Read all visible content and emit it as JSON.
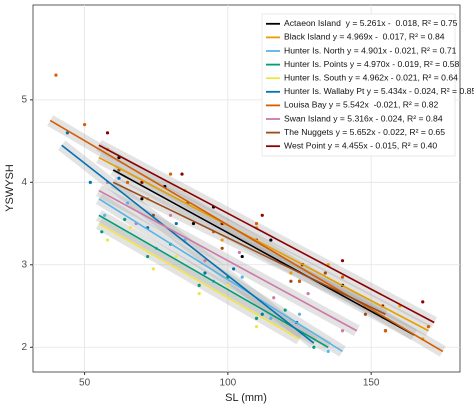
{
  "chart_data": {
    "type": "scatter",
    "x_label": "SL (mm)",
    "y_label": "YSWYSH",
    "xlim": [
      32,
      181
    ],
    "ylim": [
      1.7,
      6.15
    ],
    "xticks": [
      50,
      100,
      150
    ],
    "yticks": [
      2,
      3,
      4,
      5
    ],
    "grid": true,
    "legend": "top-right",
    "series": [
      {
        "name": "Actaeon Island  y = 5.261x -  0.018, R² = 0.75",
        "color": "#000000",
        "x": [
          62,
          70,
          78,
          88,
          95,
          105,
          115,
          125,
          140,
          155
        ],
        "values": [
          4.3,
          3.8,
          3.95,
          3.5,
          3.7,
          3.1,
          3.3,
          2.8,
          2.75,
          2.2
        ],
        "fit_x": [
          60,
          165
        ],
        "fit_y": [
          4.15,
          2.15
        ]
      },
      {
        "name": "Black Island y = 4.969x -  0.017, R² = 0.84",
        "color": "#e69f00",
        "x": [
          58,
          72,
          85,
          98,
          110,
          122,
          135,
          148,
          160,
          168
        ],
        "values": [
          4.4,
          3.8,
          3.9,
          3.3,
          3.45,
          2.9,
          3.0,
          2.5,
          2.5,
          2.1
        ],
        "fit_x": [
          55,
          170
        ],
        "fit_y": [
          4.3,
          2.2
        ]
      },
      {
        "name": "Hunter Is. North y = 4.901x - 0.021, R² = 0.71",
        "color": "#56b4e9",
        "x": [
          57,
          65,
          75,
          85,
          95,
          105,
          115,
          125,
          135
        ],
        "values": [
          3.6,
          3.75,
          3.2,
          3.3,
          2.8,
          2.85,
          2.35,
          2.4,
          1.95
        ],
        "fit_x": [
          55,
          140
        ],
        "fit_y": [
          3.8,
          1.95
        ]
      },
      {
        "name": "Hunter Is. Points y = 4.970x - 0.019, R² = 0.58",
        "color": "#009e73",
        "x": [
          56,
          64,
          72,
          80,
          90,
          100,
          110,
          120,
          130
        ],
        "values": [
          3.4,
          3.55,
          3.1,
          3.25,
          2.75,
          2.85,
          2.35,
          2.45,
          2.0
        ],
        "fit_x": [
          55,
          135
        ],
        "fit_y": [
          3.6,
          2.0
        ]
      },
      {
        "name": "Hunter Is. South y = 4.962x - 0.021, R² = 0.64",
        "color": "#f0e442",
        "x": [
          58,
          66,
          74,
          82,
          90,
          100,
          110,
          120
        ],
        "values": [
          3.3,
          3.45,
          2.95,
          3.1,
          2.65,
          2.75,
          2.25,
          2.3
        ],
        "fit_x": [
          55,
          125
        ],
        "fit_y": [
          3.5,
          2.1
        ]
      },
      {
        "name": "Hunter Is. Wallaby Pt y = 5.434x - 0.024, R² = 0.85",
        "color": "#0072b2",
        "x": [
          44,
          52,
          62,
          72,
          82,
          92,
          102,
          112,
          124
        ],
        "values": [
          4.6,
          4.0,
          4.05,
          3.45,
          3.5,
          2.9,
          2.95,
          2.4,
          2.3
        ],
        "fit_x": [
          42,
          130
        ],
        "fit_y": [
          4.45,
          2.05
        ]
      },
      {
        "name": "Louisa Bay y = 5.542x  -0.021, R² = 0.82",
        "color": "#d55e00",
        "x": [
          40,
          50,
          65,
          80,
          95,
          110,
          125,
          140,
          155,
          170
        ],
        "values": [
          5.3,
          4.7,
          4.0,
          4.1,
          3.4,
          3.5,
          2.8,
          2.85,
          2.2,
          2.25
        ],
        "fit_x": [
          38,
          175
        ],
        "fit_y": [
          4.75,
          1.95
        ]
      },
      {
        "name": "Swan Island y = 5.316x - 0.024, R² = 0.84",
        "color": "#cc79a7",
        "x": [
          58,
          68,
          80,
          92,
          104,
          116,
          128,
          140
        ],
        "values": [
          4.0,
          3.5,
          3.6,
          3.05,
          3.15,
          2.6,
          2.65,
          2.2
        ],
        "fit_x": [
          55,
          145
        ],
        "fit_y": [
          3.9,
          2.2
        ]
      },
      {
        "name": "The Nuggets y = 5.652x - 0.022, R² = 0.65",
        "color": "#994c1a",
        "x": [
          62,
          74,
          86,
          98,
          110,
          122,
          134,
          148
        ],
        "values": [
          4.15,
          3.6,
          3.75,
          3.2,
          3.3,
          2.8,
          2.9,
          2.4
        ],
        "fit_x": [
          60,
          155
        ],
        "fit_y": [
          4.0,
          2.4
        ]
      },
      {
        "name": "West Point y = 4.455x - 0.015, R² = 0.40",
        "color": "#8b0000",
        "x": [
          58,
          70,
          84,
          98,
          112,
          126,
          140,
          154,
          168
        ],
        "values": [
          4.6,
          4.0,
          4.1,
          3.5,
          3.6,
          3.0,
          3.05,
          2.5,
          2.55
        ],
        "fit_x": [
          55,
          172
        ],
        "fit_y": [
          4.45,
          2.3
        ]
      }
    ]
  }
}
